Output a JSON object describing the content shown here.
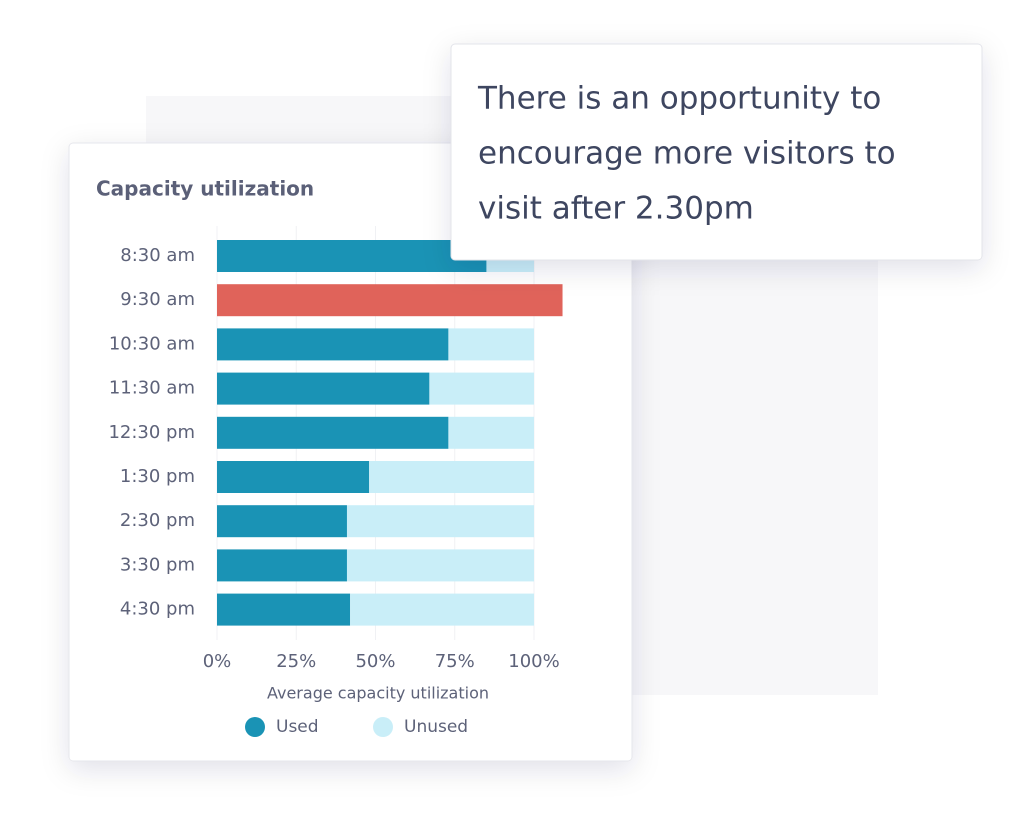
{
  "chart_data": {
    "type": "stacked_barh",
    "title": "Capacity utilization",
    "annotations": [
      "There is an opportunity to",
      "encourage more visitors to",
      "visit after 2.30pm"
    ],
    "categories": [
      "8:30 am",
      "9:30 am",
      "10:30 am",
      "11:30 am",
      "12:30 pm",
      "1:30 pm",
      "2:30 pm",
      "3:30 pm",
      "4:30 pm"
    ],
    "series": [
      {
        "name": "Used",
        "color": "#1a93b5",
        "colors": [
          "#1a93b5",
          "#e0635a",
          "#1a93b5",
          "#1a93b5",
          "#1a93b5",
          "#1a93b5",
          "#1a93b5",
          "#1a93b5",
          "#1a93b5"
        ],
        "values": [
          85,
          109,
          73,
          67,
          73,
          48,
          41,
          41,
          42
        ]
      },
      {
        "name": "Unused",
        "color": "#c9eef8",
        "values": [
          15,
          0,
          27,
          33,
          27,
          52,
          59,
          59,
          58
        ]
      }
    ],
    "xlabel": "Average capacity utilization",
    "xlim": [
      0,
      100
    ],
    "xticks": [
      {
        "value": 0,
        "label": "0%"
      },
      {
        "value": 25,
        "label": "25%"
      },
      {
        "value": 50,
        "label": "50%"
      },
      {
        "value": 75,
        "label": "75%"
      },
      {
        "value": 100,
        "label": "100%"
      }
    ],
    "grid": true,
    "legend": "bottom"
  }
}
